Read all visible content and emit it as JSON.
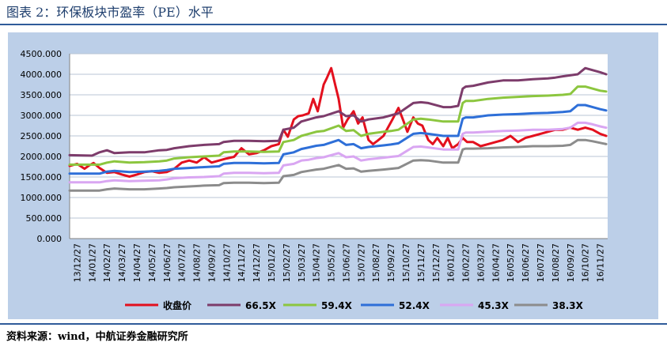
{
  "title": "图表 2：环保板块市盈率（PE）水平",
  "source": "资料来源：wind，中航证券金融研究所",
  "chart_data": {
    "type": "line",
    "ylim": [
      0,
      4500
    ],
    "y_ticks": [
      "0.000",
      "500.000",
      "1000.000",
      "1500.000",
      "2000.000",
      "2500.000",
      "3000.000",
      "3500.000",
      "4000.000",
      "4500.000"
    ],
    "x_ticks": [
      "13/12/27",
      "14/01/27",
      "14/02/27",
      "14/03/27",
      "14/04/27",
      "14/05/27",
      "14/06/27",
      "14/07/27",
      "14/08/27",
      "14/09/27",
      "14/10/27",
      "14/11/27",
      "14/12/27",
      "15/01/27",
      "15/02/27",
      "15/03/27",
      "15/04/27",
      "15/05/27",
      "15/06/27",
      "15/07/27",
      "15/08/27",
      "15/09/27",
      "15/10/27",
      "15/11/27",
      "15/12/27",
      "16/01/27",
      "16/02/27",
      "16/03/27",
      "16/04/27",
      "16/05/27",
      "16/06/27",
      "16/07/27",
      "16/08/27",
      "16/09/27",
      "16/10/27",
      "16/11/27"
    ],
    "x_range": [
      0,
      36
    ],
    "grid": true,
    "legend_position": "bottom",
    "series": [
      {
        "name": "收盘价",
        "color": "#e3101e",
        "x": [
          0,
          0.5,
          1,
          1.3,
          1.6,
          2,
          2.5,
          3,
          3.5,
          4,
          4.5,
          5,
          5.5,
          6,
          6.5,
          7,
          7.5,
          8,
          8.5,
          9,
          9.5,
          10,
          10.5,
          11,
          11.5,
          12,
          12.5,
          13,
          13.5,
          14,
          14.3,
          14.6,
          15,
          15.3,
          15.6,
          16,
          16.3,
          16.6,
          17,
          17.2,
          17.5,
          17.8,
          18,
          18.3,
          18.6,
          19,
          19.3,
          19.6,
          20,
          20.3,
          20.6,
          21,
          21.3,
          21.6,
          22,
          22.3,
          22.6,
          23,
          23.3,
          23.6,
          24,
          24.3,
          24.6,
          25,
          25.3,
          25.6,
          26,
          26.3,
          26.6,
          27,
          27.5,
          28,
          28.5,
          29,
          29.5,
          30,
          30.5,
          31,
          31.5,
          32,
          32.5,
          33,
          33.5,
          34,
          34.5,
          35,
          35.5,
          35.9
        ],
        "y": [
          1770,
          1820,
          1700,
          1780,
          1840,
          1720,
          1600,
          1620,
          1560,
          1510,
          1560,
          1620,
          1640,
          1600,
          1620,
          1700,
          1850,
          1900,
          1850,
          1980,
          1850,
          1900,
          1950,
          1990,
          2200,
          2050,
          2080,
          2150,
          2250,
          2300,
          2650,
          2480,
          2900,
          2980,
          3000,
          3050,
          3400,
          3100,
          3750,
          3900,
          4150,
          3700,
          3400,
          2700,
          2900,
          3100,
          2800,
          2950,
          2400,
          2300,
          2380,
          2500,
          2700,
          2900,
          3180,
          2900,
          2600,
          2950,
          2800,
          2750,
          2400,
          2300,
          2450,
          2250,
          2450,
          2200,
          2300,
          2450,
          2350,
          2350,
          2250,
          2300,
          2350,
          2400,
          2500,
          2350,
          2450,
          2500,
          2550,
          2600,
          2650,
          2650,
          2700,
          2650,
          2700,
          2650,
          2550,
          2500
        ]
      },
      {
        "name": "66.5X",
        "color": "#7d3c6b",
        "x": [
          0,
          1.5,
          2,
          2.5,
          3,
          4,
          5,
          6,
          6.5,
          7,
          8,
          9,
          10,
          10.3,
          11,
          12,
          13,
          14,
          14.3,
          15,
          15.5,
          16,
          16.5,
          17,
          18,
          18.5,
          19,
          19.5,
          20,
          21,
          21.5,
          22,
          23,
          23.5,
          24,
          25,
          25.5,
          26,
          26.3,
          26.5,
          27,
          28,
          29,
          30,
          31,
          32,
          32.5,
          33,
          34,
          34.5,
          35,
          35.5,
          35.9
        ],
        "y": [
          2030,
          2020,
          2100,
          2150,
          2080,
          2100,
          2100,
          2150,
          2160,
          2200,
          2250,
          2280,
          2300,
          2350,
          2380,
          2380,
          2370,
          2380,
          2650,
          2700,
          2850,
          2900,
          2950,
          2980,
          3100,
          2980,
          3000,
          2850,
          2900,
          2950,
          3000,
          3050,
          3300,
          3320,
          3300,
          3200,
          3200,
          3230,
          3650,
          3700,
          3720,
          3800,
          3850,
          3850,
          3880,
          3900,
          3920,
          3950,
          4000,
          4150,
          4100,
          4050,
          4000
        ]
      },
      {
        "name": "59.4X",
        "color": "#8cc63f",
        "x": [
          0,
          2,
          2.5,
          3,
          4,
          5,
          6,
          6.5,
          7,
          8,
          9,
          10,
          10.3,
          11,
          12,
          13,
          14,
          14.3,
          15,
          15.5,
          16,
          16.5,
          17,
          18,
          18.5,
          19,
          19.5,
          20,
          21,
          21.5,
          22,
          23,
          23.5,
          24,
          25,
          25.5,
          26,
          26.3,
          26.5,
          27,
          28,
          29,
          30,
          31,
          32,
          33,
          33.5,
          34,
          34.5,
          35,
          35.5,
          35.9
        ],
        "y": [
          1800,
          1800,
          1850,
          1880,
          1850,
          1860,
          1880,
          1900,
          1950,
          1980,
          2000,
          2020,
          2100,
          2120,
          2120,
          2110,
          2120,
          2350,
          2400,
          2500,
          2550,
          2600,
          2620,
          2750,
          2620,
          2640,
          2500,
          2550,
          2600,
          2620,
          2650,
          2900,
          2920,
          2900,
          2850,
          2850,
          2850,
          3300,
          3350,
          3350,
          3400,
          3430,
          3450,
          3470,
          3480,
          3500,
          3520,
          3700,
          3700,
          3650,
          3600,
          3580
        ]
      },
      {
        "name": "52.4X",
        "color": "#2e6fd8",
        "x": [
          0,
          2,
          2.5,
          3,
          4,
          5,
          6,
          6.5,
          7,
          8,
          9,
          10,
          10.3,
          11,
          12,
          13,
          14,
          14.3,
          15,
          15.5,
          16,
          16.5,
          17,
          18,
          18.5,
          19,
          19.5,
          20,
          21,
          21.5,
          22,
          23,
          23.5,
          24,
          25,
          25.5,
          26,
          26.3,
          26.5,
          27,
          28,
          29,
          30,
          31,
          32,
          33,
          33.5,
          34,
          34.5,
          35,
          35.5,
          35.9
        ],
        "y": [
          1580,
          1580,
          1630,
          1650,
          1620,
          1630,
          1650,
          1670,
          1700,
          1720,
          1740,
          1760,
          1820,
          1840,
          1840,
          1830,
          1840,
          2050,
          2100,
          2180,
          2220,
          2260,
          2280,
          2400,
          2280,
          2300,
          2200,
          2230,
          2270,
          2290,
          2320,
          2550,
          2570,
          2550,
          2500,
          2500,
          2500,
          2920,
          2950,
          2950,
          3000,
          3020,
          3030,
          3050,
          3060,
          3080,
          3100,
          3250,
          3250,
          3200,
          3150,
          3120
        ]
      },
      {
        "name": "45.3X",
        "color": "#d9a6f2",
        "x": [
          0,
          2,
          2.5,
          3,
          4,
          5,
          6,
          6.5,
          7,
          8,
          9,
          10,
          10.3,
          11,
          12,
          13,
          14,
          14.3,
          15,
          15.5,
          16,
          16.5,
          17,
          18,
          18.5,
          19,
          19.5,
          20,
          21,
          21.5,
          22,
          23,
          23.5,
          24,
          25,
          25.5,
          26,
          26.3,
          26.5,
          27,
          28,
          29,
          30,
          31,
          32,
          33,
          33.5,
          34,
          34.5,
          35,
          35.5,
          35.9
        ],
        "y": [
          1370,
          1370,
          1400,
          1420,
          1400,
          1410,
          1420,
          1440,
          1470,
          1490,
          1500,
          1520,
          1580,
          1600,
          1600,
          1590,
          1600,
          1780,
          1820,
          1900,
          1920,
          1960,
          1980,
          2080,
          1980,
          2000,
          1900,
          1930,
          1970,
          1990,
          2010,
          2230,
          2240,
          2220,
          2170,
          2170,
          2170,
          2550,
          2580,
          2580,
          2600,
          2620,
          2630,
          2650,
          2650,
          2670,
          2700,
          2820,
          2820,
          2780,
          2730,
          2700
        ]
      },
      {
        "name": "38.3X",
        "color": "#8c8c8c",
        "x": [
          0,
          2,
          2.5,
          3,
          4,
          5,
          6,
          6.5,
          7,
          8,
          9,
          10,
          10.3,
          11,
          12,
          13,
          14,
          14.3,
          15,
          15.5,
          16,
          16.5,
          17,
          18,
          18.5,
          19,
          19.5,
          20,
          21,
          21.5,
          22,
          23,
          23.5,
          24,
          25,
          25.5,
          26,
          26.3,
          26.5,
          27,
          28,
          29,
          30,
          31,
          32,
          33,
          33.5,
          34,
          34.5,
          35,
          35.5,
          35.9
        ],
        "y": [
          1170,
          1170,
          1200,
          1220,
          1200,
          1200,
          1220,
          1230,
          1250,
          1270,
          1290,
          1300,
          1350,
          1360,
          1360,
          1350,
          1360,
          1520,
          1550,
          1620,
          1650,
          1680,
          1700,
          1790,
          1700,
          1710,
          1630,
          1650,
          1680,
          1700,
          1720,
          1900,
          1910,
          1900,
          1850,
          1850,
          1850,
          2170,
          2190,
          2190,
          2200,
          2220,
          2230,
          2250,
          2250,
          2260,
          2280,
          2400,
          2400,
          2370,
          2330,
          2300
        ]
      }
    ]
  }
}
